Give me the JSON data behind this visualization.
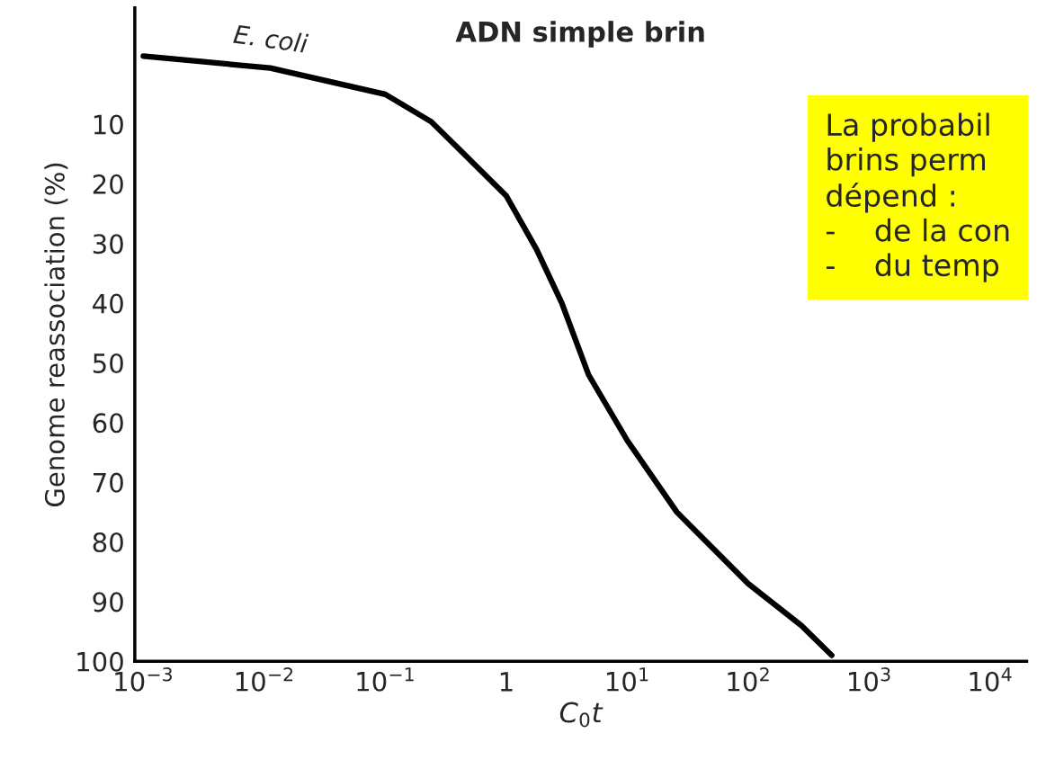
{
  "chart_data": {
    "type": "line",
    "title": "ADN simple brin",
    "xlabel": "C$_{0}$t",
    "ylabel": "Genome reassociation (%)",
    "x": [
      0.001,
      0.0112,
      0.1,
      0.24,
      1,
      1.78,
      2.88,
      4.79,
      10,
      25.7,
      100,
      275,
      490
    ],
    "series": [
      {
        "color": "#000000",
        "values": [
          -1.4,
          0.6,
          5,
          9.6,
          22,
          31,
          40,
          52,
          63,
          75,
          87,
          94,
          99
        ]
      }
    ],
    "log": "x",
    "xlim": [
      0.00085,
      20000
    ],
    "ylim": [
      100,
      -9.5
    ],
    "xticks": [
      {
        "value": 0.001,
        "label": "10$^{−3}$"
      },
      {
        "value": 0.01,
        "label": "10$^{−2}$"
      },
      {
        "value": 0.1,
        "label": "10$^{−1}$"
      },
      1,
      {
        "value": 10,
        "label": "10$^{1}$"
      },
      {
        "value": 100,
        "label": "10$^{2}$"
      },
      {
        "value": 1000,
        "label": "10$^{3}$"
      },
      {
        "value": 10000,
        "label": "10$^{4}$"
      }
    ],
    "yticks": [
      10,
      20,
      30,
      40,
      50,
      60,
      70,
      80,
      90,
      100
    ],
    "grid": false,
    "legend": false,
    "marker": "none",
    "line_style": "solid",
    "annotations": [
      {
        "text": "E. coli",
        "x": 0.0112,
        "y": 0.6
      },
      "La probabil\nbrins perm\ndépend :\n-    de la con\n-    du temp"
    ]
  }
}
